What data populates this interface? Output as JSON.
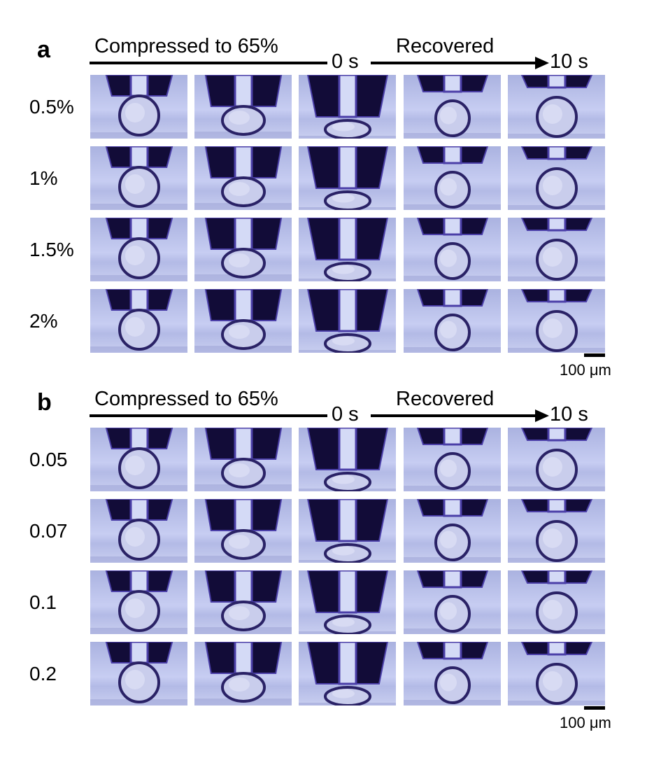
{
  "panels": [
    {
      "label": "a",
      "header": {
        "compressed": "Compressed to 65%",
        "zero": "0 s",
        "recovered": "Recovered",
        "ten": "10 s"
      },
      "rows": [
        "0.5%",
        "1%",
        "1.5%",
        "2%"
      ],
      "scale": "100 μm"
    },
    {
      "label": "b",
      "header": {
        "compressed": "Compressed to 65%",
        "zero": "0 s",
        "recovered": "Recovered",
        "ten": "10 s"
      },
      "rows": [
        "0.05",
        "0.07",
        "0.1",
        "0.2"
      ],
      "scale": "100 μm"
    }
  ],
  "columns": [
    "contact",
    "compressed",
    "compressed-65",
    "recovered-0s",
    "recovered-10s"
  ],
  "colors": {
    "probe": "#120c38",
    "edge": "#4b3fa8",
    "stripe": "#d4daf6",
    "sphere": "#2a2266"
  }
}
